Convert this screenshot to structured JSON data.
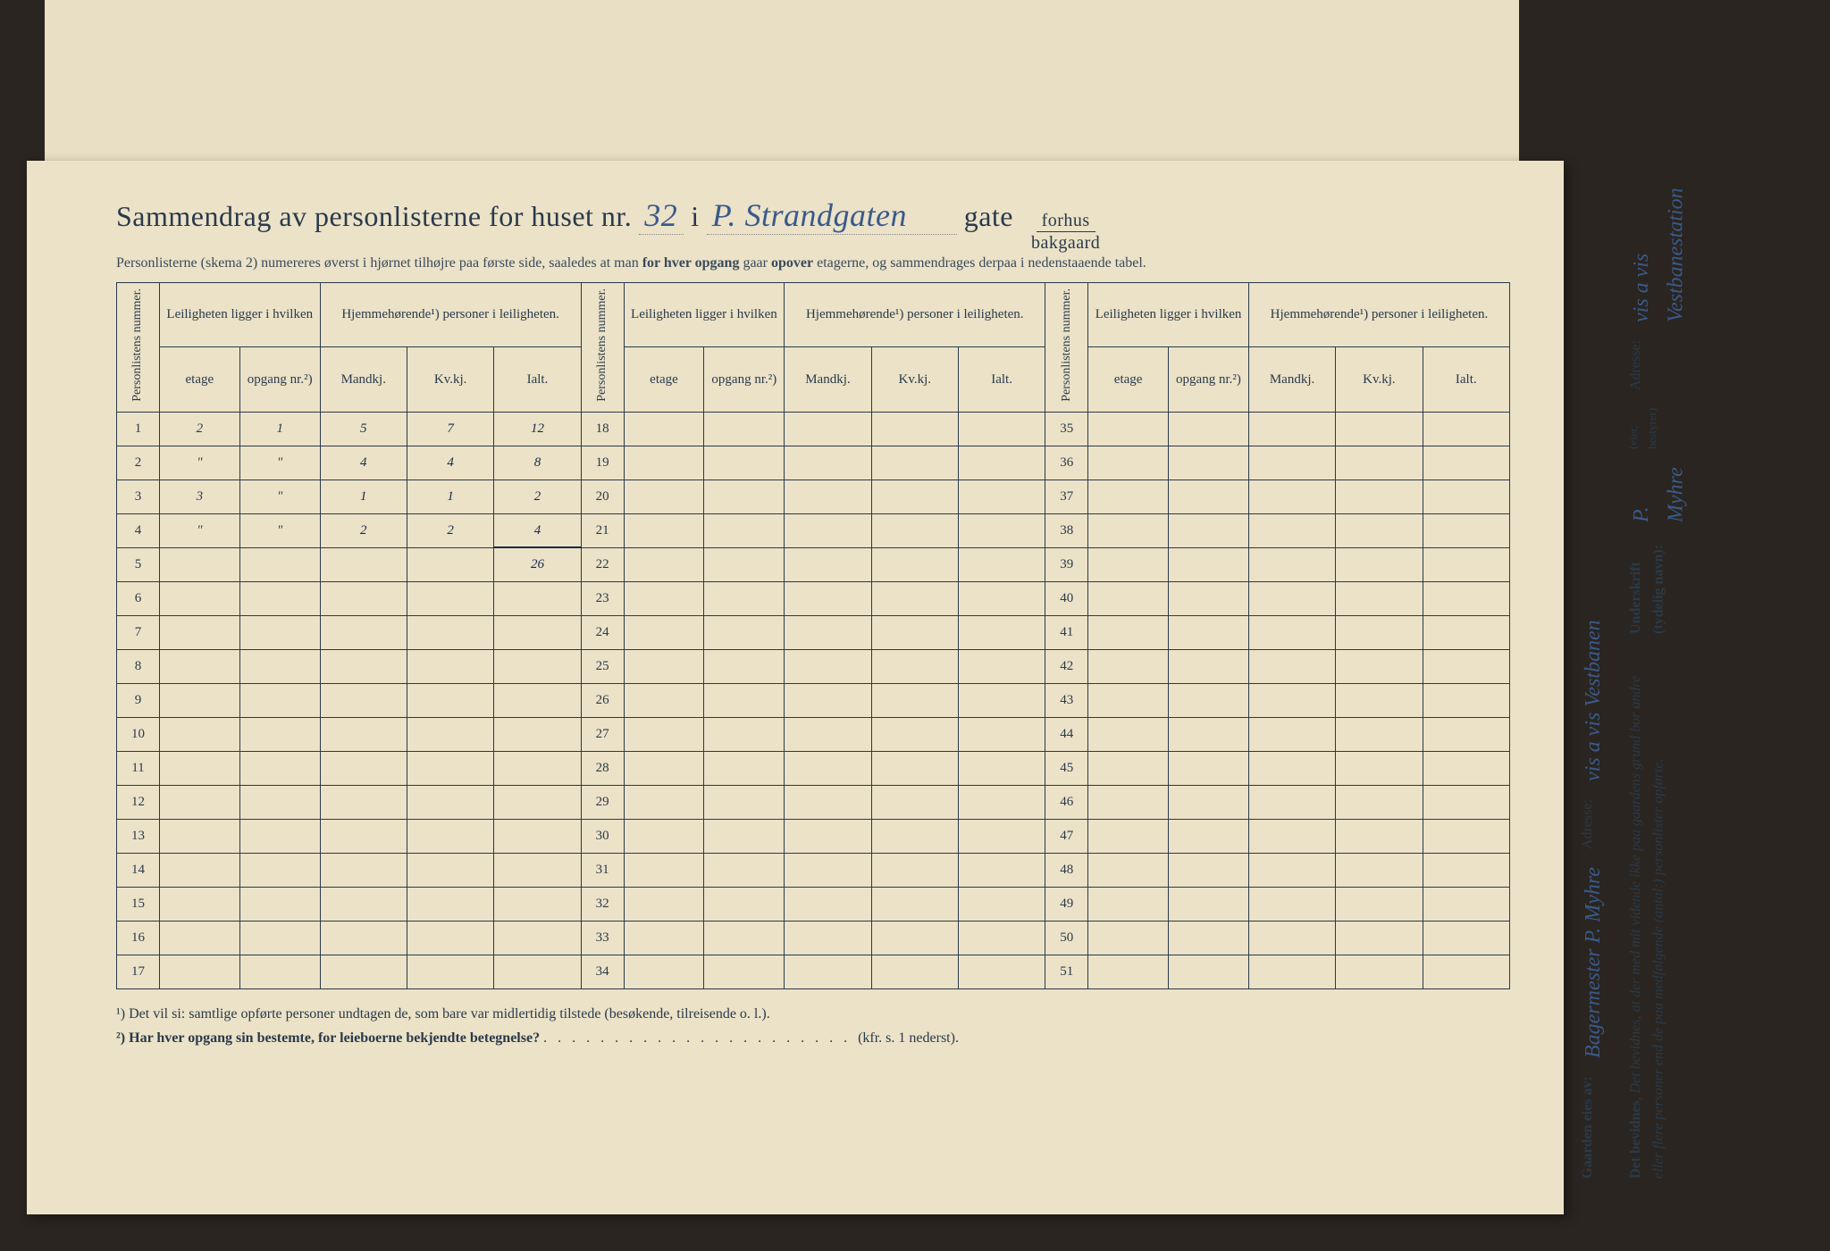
{
  "title": {
    "prefix": "Sammendrag av personlisterne for huset nr.",
    "house_nr": "32",
    "mid": "i",
    "street": "P. Strandgaten",
    "suffix": "gate",
    "frac_top": "forhus",
    "frac_bot": "bakgaard"
  },
  "subtitle": "Personlisterne (skema 2) numereres øverst i hjørnet tilhøjre paa første side, saaledes at man for hver opgang gaar opover etagerne, og sammendrages derpaa i nedenstaaende tabel.",
  "headers": {
    "personlistens": "Personlistens nummer.",
    "leiligheten": "Leiligheten ligger i hvilken",
    "hjemme": "Hjemmehørende¹) personer i leiligheten.",
    "etage": "etage",
    "opgang": "opgang nr.²)",
    "mandkj": "Mandkj.",
    "kvkj": "Kv.kj.",
    "ialt": "Ialt."
  },
  "rows_block1": [
    {
      "n": "1",
      "etage": "2",
      "opgang": "1",
      "m": "5",
      "k": "7",
      "i": "12"
    },
    {
      "n": "2",
      "etage": "\"",
      "opgang": "\"",
      "m": "4",
      "k": "4",
      "i": "8"
    },
    {
      "n": "3",
      "etage": "3",
      "opgang": "\"",
      "m": "1",
      "k": "1",
      "i": "2"
    },
    {
      "n": "4",
      "etage": "\"",
      "opgang": "\"",
      "m": "2",
      "k": "2",
      "i": "4"
    },
    {
      "n": "5",
      "etage": "",
      "opgang": "",
      "m": "",
      "k": "",
      "i": "26"
    },
    {
      "n": "6"
    },
    {
      "n": "7"
    },
    {
      "n": "8"
    },
    {
      "n": "9"
    },
    {
      "n": "10"
    },
    {
      "n": "11"
    },
    {
      "n": "12"
    },
    {
      "n": "13"
    },
    {
      "n": "14"
    },
    {
      "n": "15"
    },
    {
      "n": "16"
    },
    {
      "n": "17"
    }
  ],
  "rows_block2_start": 18,
  "rows_block2_end": 34,
  "rows_block3_start": 35,
  "rows_block3_end": 51,
  "footnotes": {
    "f1": "¹) Det vil si: samtlige opførte personer undtagen de, som bare var midlertidig tilstede (besøkende, tilreisende o. l.).",
    "f2": "²) Har hver opgang sin bestemte, for leieboerne bekjendte betegnelse?",
    "f2_suffix": "(kfr. s. 1 nederst)."
  },
  "sidebar": {
    "gaarden": "Gaarden eies av:",
    "owner_hw": "Bagermester P. Myhre",
    "adresse1": "Adresse:",
    "adresse1_hw": "vis a vis Vestbanen",
    "bevidnes": "Det bevidnes, at der med mit vidende ikke paa gaardens grund bor andre eller flere personer end de paa medfølgende (antal:) personlister opførte.",
    "underskrift": "Underskrift (tydelig navn):",
    "underskrift_hw": "P. Myhre",
    "eier": "(eier, bestyrer)",
    "adresse2": "Adresse:",
    "adresse2_hw": "vis a vis Vestbanestation"
  }
}
